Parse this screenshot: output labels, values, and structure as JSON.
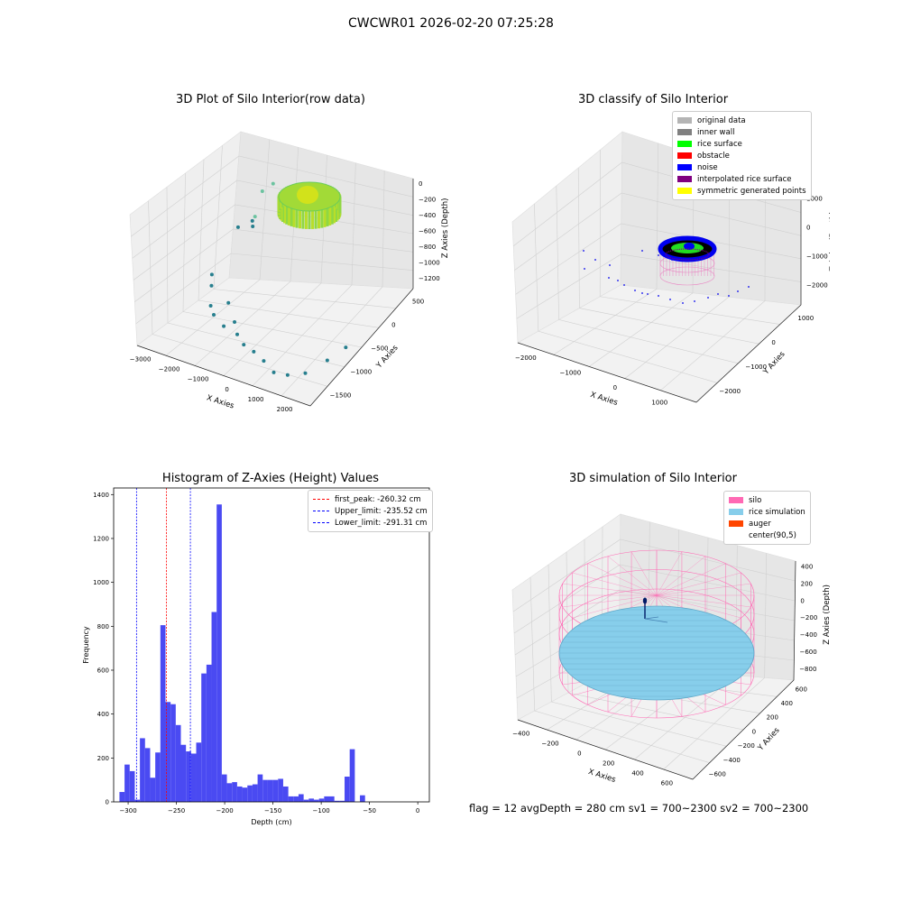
{
  "figure": {
    "title": "CWCWR01 2026-02-20 07:25:28"
  },
  "footer": {
    "text": "flag = 12   avgDepth = 280 cm   sv1 = 700~2300  sv2 = 700~2300"
  },
  "colors": {
    "hist_bar": "#4a4af2",
    "first_peak": "#ff0000",
    "limits": "#0000ff",
    "pane": "#efefef",
    "silo": "#ff69b4",
    "rice_sim": "#87ceeb",
    "auger": "#ff4500"
  },
  "chart_data": [
    {
      "type": "scatter",
      "title": "3D Plot of Silo Interior(row data)",
      "xlabel": "X Axies",
      "ylabel": "Y Axies",
      "zlabel": "Z Axies (Depth)",
      "xticks": [
        "−3000",
        "−2000",
        "−1000",
        "0",
        "1000",
        "2000"
      ],
      "yticks": [
        "500",
        "0",
        "−500",
        "−1000",
        "−1500"
      ],
      "zticks": [
        "0",
        "−200",
        "−400",
        "−600",
        "−800",
        "−1000",
        "−1200"
      ],
      "points": [
        {
          "x": -2400,
          "y": -300,
          "z": -1150
        },
        {
          "x": -2300,
          "y": -400,
          "z": -1200
        },
        {
          "x": -2100,
          "y": -600,
          "z": -1280
        },
        {
          "x": -1900,
          "y": -700,
          "z": -1300
        },
        {
          "x": -1700,
          "y": -500,
          "z": -1250
        },
        {
          "x": -1500,
          "y": -800,
          "z": -1320
        },
        {
          "x": -1300,
          "y": -700,
          "z": -1300
        },
        {
          "x": -1000,
          "y": -900,
          "z": -1300
        },
        {
          "x": -700,
          "y": -1000,
          "z": -1320
        },
        {
          "x": -300,
          "y": -1100,
          "z": -1300
        },
        {
          "x": 100,
          "y": -1200,
          "z": -1300
        },
        {
          "x": 500,
          "y": -1300,
          "z": -1320
        },
        {
          "x": 900,
          "y": -1300,
          "z": -1300
        },
        {
          "x": 1300,
          "y": -1200,
          "z": -1280
        },
        {
          "x": 1600,
          "y": -900,
          "z": -1250
        },
        {
          "x": 1800,
          "y": -600,
          "z": -1230
        },
        {
          "x": -2200,
          "y": 200,
          "z": -900
        },
        {
          "x": -1900,
          "y": 300,
          "z": -850
        },
        {
          "x": -1600,
          "y": 100,
          "z": -700
        },
        {
          "x": -2000,
          "y": 400,
          "z": -950
        },
        {
          "x": -1500,
          "y": 200,
          "z": -500
        },
        {
          "x": -1300,
          "y": 300,
          "z": -450
        }
      ],
      "surface_z_range": [
        -400,
        -100
      ]
    },
    {
      "type": "scatter",
      "title": "3D classify of Silo Interior",
      "xlabel": "X Axies",
      "ylabel": "Y Axies",
      "zlabel": "Z Axies (Depth)",
      "xticks": [
        "−2000",
        "−1000",
        "0",
        "1000"
      ],
      "yticks": [
        "1000",
        "0",
        "−1000",
        "−2000"
      ],
      "zticks": [
        "1000",
        "0",
        "−1000",
        "−2000"
      ],
      "legend": [
        {
          "label": "original data",
          "color": "#b4b4b4"
        },
        {
          "label": "inner wall",
          "color": "#808080"
        },
        {
          "label": "rice surface",
          "color": "#00ff00"
        },
        {
          "label": "obstacle",
          "color": "#ff0000"
        },
        {
          "label": "noise",
          "color": "#0000ff"
        },
        {
          "label": "interpolated rice surface",
          "color": "#800080"
        },
        {
          "label": "symmetric generated points",
          "color": "#ffff00"
        }
      ]
    },
    {
      "type": "bar",
      "title": "Histogram of Z-Axies (Height) Values",
      "xlabel": "Depth (cm)",
      "ylabel": "Frequency",
      "xlim": [
        -315,
        12
      ],
      "ylim": [
        0,
        1430
      ],
      "xticks": [
        -300,
        -250,
        -200,
        -150,
        -100,
        -50,
        0
      ],
      "xtick_labels": [
        "−300",
        "−250",
        "−200",
        "−150",
        "−100",
        "−50",
        "0"
      ],
      "yticks": [
        0,
        200,
        400,
        600,
        800,
        1000,
        1200,
        1400
      ],
      "yticklabels": [
        "0",
        "200",
        "400",
        "600",
        "800",
        "1000",
        "1200",
        "1400"
      ],
      "bin_start": -309,
      "bin_width": 5.3,
      "values": [
        45,
        170,
        140,
        10,
        290,
        245,
        110,
        225,
        805,
        455,
        445,
        350,
        260,
        230,
        220,
        270,
        585,
        625,
        865,
        1355,
        125,
        85,
        90,
        70,
        65,
        75,
        80,
        125,
        100,
        100,
        100,
        105,
        70,
        25,
        25,
        35,
        10,
        15,
        10,
        15,
        25,
        25,
        5,
        5,
        115,
        240,
        0,
        30
      ],
      "lines": [
        {
          "label": "first_peak: -260.32 cm",
          "x": -260.32,
          "color": "#ff0000"
        },
        {
          "label": "Upper_limit: -235.52 cm",
          "x": -235.52,
          "color": "#0000ff"
        },
        {
          "label": "Lower_limit: -291.31 cm",
          "x": -291.31,
          "color": "#0000ff"
        }
      ]
    },
    {
      "type": "scatter",
      "title": "3D simulation of Silo Interior",
      "xlabel": "X Axies",
      "ylabel": "Y Axies",
      "zlabel": "Z Axies (Depth)",
      "xticks": [
        "−400",
        "−200",
        "0",
        "200",
        "400",
        "600"
      ],
      "yticks": [
        "600",
        "400",
        "200",
        "0",
        "−200",
        "−400",
        "−600"
      ],
      "zticks": [
        "400",
        "200",
        "0",
        "−200",
        "−400",
        "−600",
        "−800"
      ],
      "legend": [
        {
          "label": "silo",
          "color": "#ff69b4"
        },
        {
          "label": "rice simulation",
          "color": "#87ceeb"
        },
        {
          "label": "auger",
          "color": "#ff4500"
        },
        {
          "label": "center(90,5)",
          "color": "#ffffff"
        }
      ]
    }
  ]
}
